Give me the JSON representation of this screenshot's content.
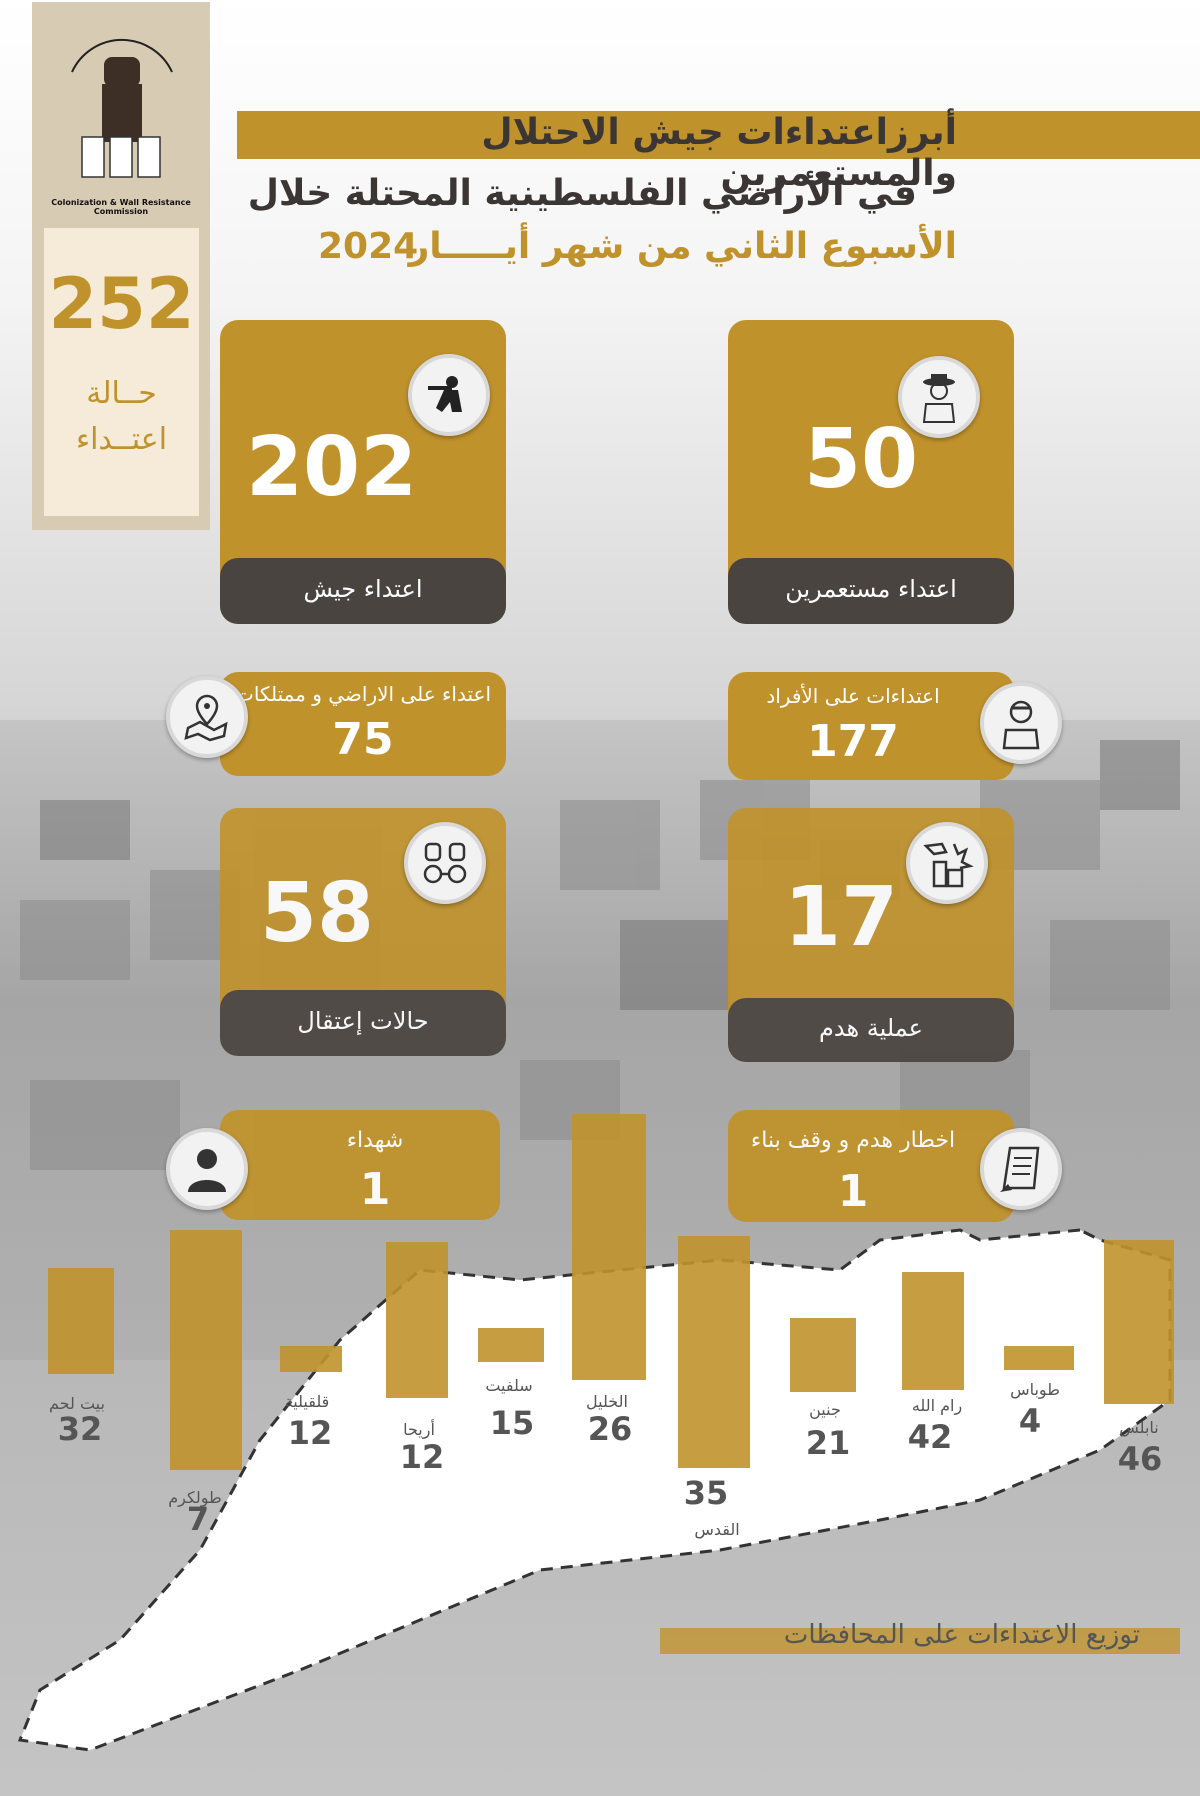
{
  "logo": {
    "caption": "Colonization & Wall Resistance Commission"
  },
  "total": {
    "number": "252",
    "label_1": "حــالة",
    "label_2": "اعتــداء"
  },
  "title": {
    "line_1": "أبرزاعتداءات جيش الاحتلال والمستعمرين",
    "line_2": "في الأراضي الفلسطينية المحتلة خلال",
    "line_3": "الأسبوع الثاني  من شهر أيـــــار",
    "year": "2024"
  },
  "cards": {
    "army": {
      "value": "202",
      "label": "اعتداء جيش",
      "icon": "soldier-icon"
    },
    "settlers": {
      "value": "50",
      "label": "اعتداء مستعمرين",
      "icon": "settler-icon"
    },
    "lands": {
      "label": "اعتداء على الاراضي و ممتلكات",
      "value": "75",
      "icon": "map-pin-icon"
    },
    "individuals": {
      "label": "اعتداءات على الأفراد",
      "value": "177",
      "icon": "injured-person-icon"
    },
    "arrests": {
      "value": "58",
      "label": "حالات إعتقال",
      "icon": "handcuffs-icon"
    },
    "demolition": {
      "value": "17",
      "label": "عملية  هدم",
      "icon": "demolition-icon"
    },
    "martyrs": {
      "label": "شهداء",
      "value": "1",
      "icon": "person-icon"
    },
    "notices": {
      "label": "اخطار  هدم و وقف بناء",
      "value": "1",
      "icon": "document-icon"
    }
  },
  "chart_data": {
    "type": "bar",
    "title": "توزيع الاعتداءات على المحافظات",
    "categories": [
      "بيت لحم",
      "طولكرم",
      "قلقيلية",
      "أريحا",
      "سلفيت",
      "الخليل",
      "القدس",
      "جنين",
      "رام الله",
      "طوباس",
      "نابلس"
    ],
    "values": [
      32,
      7,
      12,
      12,
      15,
      26,
      35,
      21,
      42,
      4,
      46
    ],
    "value_labels": [
      "32",
      "7",
      "12",
      "12",
      "15",
      "26",
      "35",
      "21",
      "42",
      "4",
      "46"
    ]
  },
  "colors": {
    "accent": "#c0922c",
    "dark": "#4a4440",
    "text": "#3b3633"
  }
}
